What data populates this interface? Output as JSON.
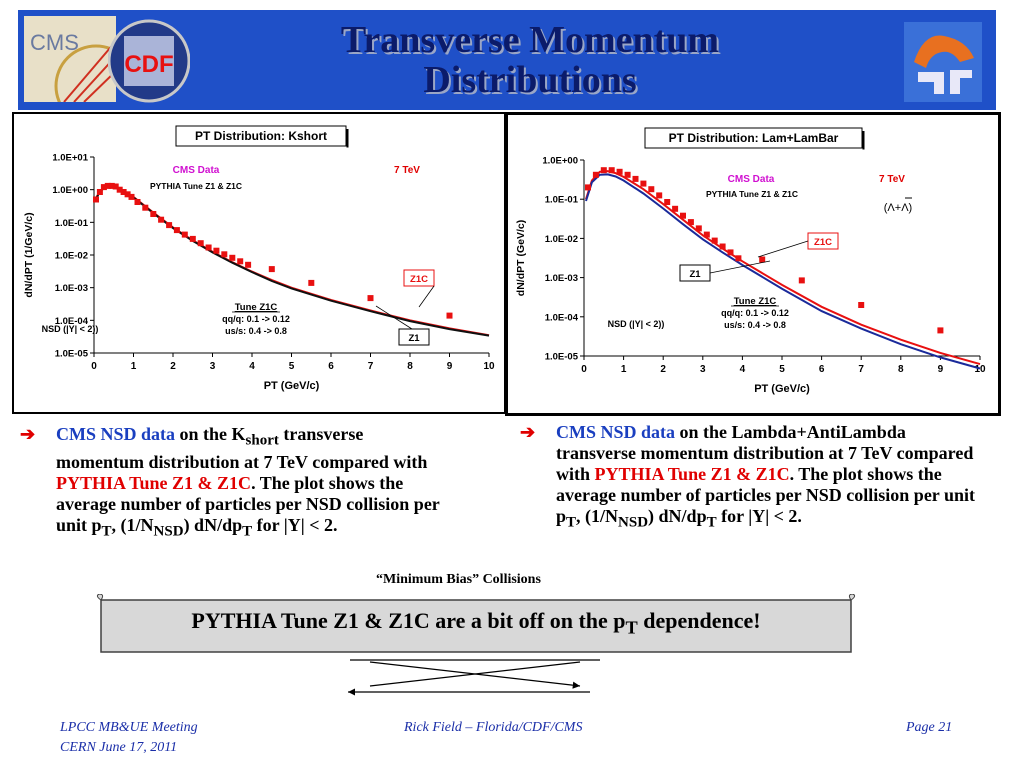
{
  "slide": {
    "title_line1": "Transverse Momentum",
    "title_line2": "Distributions",
    "logos": {
      "cms": "CMS",
      "cdf": "CDF"
    },
    "caption_minimum_bias": "“Minimum Bias” Collisions",
    "banner": {
      "text": "PYTHIA Tune Z1 & Z1C are a bit off on the p",
      "sub": "T",
      "tail": " dependence!"
    },
    "footer": {
      "left_line1": "LPCC MB&UE Meeting",
      "left_line2": "CERN June 17, 2011",
      "center": "Rick Field – Florida/CDF/CMS",
      "right": "Page 21"
    },
    "bullet_left": {
      "data_label": "CMS NSD data",
      "t1": " on the K",
      "t1_sub": "short",
      "t2": " transverse momentum distribution at 7 TeV compared with ",
      "tune": "PYTHIA Tune Z1 & Z1C",
      "t3": ".  The plot shows the average number of particles per NSD collision per unit p",
      "t3_sub": "T",
      "t4": ", (1/N",
      "t4_sub": "NSD",
      "t5": ") dN/dp",
      "t5_sub": "T",
      "t6": " for |Y| < 2."
    },
    "bullet_right": {
      "data_label": "CMS NSD data",
      "t1": " on the Lambda+AntiLambda transverse momentum distribution at 7 TeV compared with ",
      "tune": "PYTHIA Tune Z1 & Z1C",
      "t2": ".  The plot shows the average number of particles per NSD collision per unit p",
      "t2_sub": "T",
      "t3": ", (1/N",
      "t3_sub": "NSD",
      "t4": ") dN/dp",
      "t4_sub": "T",
      "t5": " for |Y| < 2."
    }
  },
  "colors": {
    "header": "#1f50c8",
    "data": "#e81010",
    "z1c": "#e81010",
    "z1": "#101010",
    "z1_right": "#1a2a9a",
    "cms_label": "#d010d0",
    "energy": "#e00000"
  },
  "chart_data": [
    {
      "type": "scatter",
      "title": "PT Distribution: Kshort",
      "xlabel": "PT (GeV/c)",
      "ylabel": "dN/dPT (1/GeV/c)",
      "xlim": [
        0,
        10
      ],
      "ylim": [
        1e-05,
        10
      ],
      "log_y": true,
      "x_ticks": [
        "0",
        "1",
        "2",
        "3",
        "4",
        "5",
        "6",
        "7",
        "8",
        "9",
        "10"
      ],
      "y_ticks": [
        "1.0E-05",
        "1.0E-04",
        "1.0E-03",
        "1.0E-02",
        "1.0E-01",
        "1.0E+00",
        "1.0E+01"
      ],
      "grid": false,
      "legend": "none",
      "annotations": {
        "cms": "CMS Data",
        "pythia": "PYTHIA Tune Z1 & Z1C",
        "energy": "7 TeV",
        "tune_title": "Tune Z1C",
        "tune_line1": "qq/q: 0.1 -> 0.12",
        "tune_line2": "us/s: 0.4 -> 0.8",
        "nsd": "NSD (|Y| < 2))",
        "z1c_label": "Z1C",
        "z1_label": "Z1"
      },
      "series": [
        {
          "name": "CMS Data",
          "kind": "points",
          "x": [
            0.05,
            0.15,
            0.25,
            0.35,
            0.45,
            0.55,
            0.65,
            0.75,
            0.85,
            0.95,
            1.1,
            1.3,
            1.5,
            1.7,
            1.9,
            2.1,
            2.3,
            2.5,
            2.7,
            2.9,
            3.1,
            3.3,
            3.5,
            3.7,
            3.9,
            4.5,
            5.5,
            7.0,
            9.0
          ],
          "y": [
            0.5,
            0.85,
            1.2,
            1.3,
            1.3,
            1.25,
            1.0,
            0.85,
            0.72,
            0.6,
            0.42,
            0.28,
            0.18,
            0.12,
            0.082,
            0.058,
            0.042,
            0.031,
            0.023,
            0.017,
            0.0135,
            0.0105,
            0.0082,
            0.0064,
            0.005,
            0.0037,
            0.0014,
            0.00048,
            0.00014
          ]
        },
        {
          "name": "Z1C",
          "kind": "line",
          "x": [
            0.05,
            0.15,
            0.3,
            0.5,
            0.7,
            1.0,
            1.5,
            2.0,
            2.5,
            3.0,
            3.5,
            4.0,
            4.5,
            5.0,
            6.0,
            7.0,
            8.0,
            9.0,
            10.0
          ],
          "y": [
            0.55,
            0.9,
            1.25,
            1.3,
            1.0,
            0.6,
            0.2,
            0.07,
            0.028,
            0.0125,
            0.006,
            0.0031,
            0.0017,
            0.001,
            0.00042,
            0.0002,
            0.0001,
            5.7e-05,
            3.5e-05
          ]
        },
        {
          "name": "Z1",
          "kind": "line",
          "x": [
            0.05,
            0.15,
            0.3,
            0.5,
            0.7,
            1.0,
            1.5,
            2.0,
            2.5,
            3.0,
            3.5,
            4.0,
            4.5,
            5.0,
            6.0,
            7.0,
            8.0,
            9.0,
            10.0
          ],
          "y": [
            0.52,
            0.88,
            1.22,
            1.28,
            0.98,
            0.58,
            0.19,
            0.067,
            0.027,
            0.012,
            0.0058,
            0.003,
            0.0016,
            0.00095,
            0.0004,
            0.00019,
            9.5e-05,
            5.4e-05,
            3.4e-05
          ]
        }
      ]
    },
    {
      "type": "scatter",
      "title": "PT Distribution: Lam+LamBar",
      "xlabel": "PT (GeV/c)",
      "ylabel": "dN/dPT (GeV/c)",
      "xlim": [
        0,
        10
      ],
      "ylim": [
        1e-05,
        1
      ],
      "log_y": true,
      "x_ticks": [
        "0",
        "1",
        "2",
        "3",
        "4",
        "5",
        "6",
        "7",
        "8",
        "9",
        "10"
      ],
      "y_ticks": [
        "1.0E-05",
        "1.0E-04",
        "1.0E-03",
        "1.0E-02",
        "1.0E-01",
        "1.0E+00"
      ],
      "grid": false,
      "legend": "none",
      "annotations": {
        "cms": "CMS Data",
        "pythia": "PYTHIA Tune Z1 & Z1C",
        "energy": "7 TeV",
        "particle": "(Λ+Λ)",
        "tune_title": "Tune Z1C",
        "tune_line1": "qq/q: 0.1 -> 0.12",
        "tune_line2": "us/s: 0.4 -> 0.8",
        "nsd": "NSD (|Y| < 2))",
        "z1c_label": "Z1C",
        "z1_label": "Z1"
      },
      "series": [
        {
          "name": "CMS Data",
          "kind": "points",
          "x": [
            0.1,
            0.3,
            0.5,
            0.7,
            0.9,
            1.1,
            1.3,
            1.5,
            1.7,
            1.9,
            2.1,
            2.3,
            2.5,
            2.7,
            2.9,
            3.1,
            3.3,
            3.5,
            3.7,
            3.9,
            4.5,
            5.5,
            7.0,
            9.0
          ],
          "y": [
            0.2,
            0.42,
            0.55,
            0.55,
            0.5,
            0.42,
            0.33,
            0.25,
            0.18,
            0.125,
            0.085,
            0.057,
            0.038,
            0.026,
            0.018,
            0.0125,
            0.0088,
            0.0062,
            0.0044,
            0.0031,
            0.0029,
            0.00085,
            0.0002,
            4.5e-05
          ]
        },
        {
          "name": "Z1C",
          "kind": "line",
          "x": [
            0.05,
            0.2,
            0.4,
            0.6,
            0.8,
            1.0,
            1.5,
            2.0,
            2.5,
            3.0,
            3.5,
            4.0,
            5.0,
            6.0,
            7.0,
            8.0,
            9.0,
            10.0
          ],
          "y": [
            0.1,
            0.3,
            0.5,
            0.52,
            0.46,
            0.37,
            0.18,
            0.075,
            0.03,
            0.012,
            0.0055,
            0.0026,
            0.00065,
            0.00018,
            6.3e-05,
            2.6e-05,
            1.2e-05,
            6.2e-06
          ]
        },
        {
          "name": "Z1",
          "kind": "line",
          "x": [
            0.05,
            0.2,
            0.4,
            0.6,
            0.8,
            1.0,
            1.5,
            2.0,
            2.5,
            3.0,
            3.5,
            4.0,
            5.0,
            6.0,
            7.0,
            8.0,
            9.0,
            10.0
          ],
          "y": [
            0.09,
            0.27,
            0.42,
            0.43,
            0.38,
            0.3,
            0.14,
            0.058,
            0.023,
            0.0095,
            0.0044,
            0.0021,
            0.00052,
            0.00014,
            5e-05,
            2e-05,
            9.2e-06,
            4.8e-06
          ]
        }
      ]
    }
  ]
}
